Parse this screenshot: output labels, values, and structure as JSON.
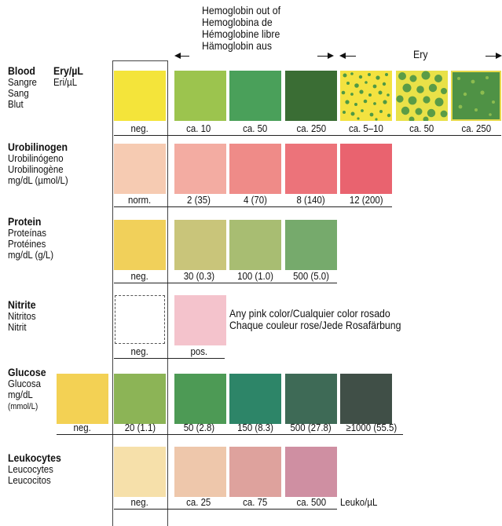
{
  "header": {
    "hemoglobin_lines": [
      "Hemoglobin out of",
      "Hemoglobina de",
      "Hémoglobine libre",
      "Hämoglobin aus"
    ],
    "ery_label": "Ery"
  },
  "blood": {
    "names": [
      "Blood",
      "Sangre",
      "Sang",
      "Blut"
    ],
    "units": [
      "Ery/µL",
      "Eri/µL"
    ],
    "labels": [
      "neg.",
      "ca. 10",
      "ca. 50",
      "ca. 250",
      "ca. 5–10",
      "ca. 50",
      "ca. 250"
    ],
    "colors": [
      "#f4e43a",
      "#9cc44e",
      "#4aa05a",
      "#3a6d34"
    ]
  },
  "urobilinogen": {
    "names": [
      "Urobilinogen",
      "Urobilinógeno",
      "Urobilinogène",
      "mg/dL (µmol/L)"
    ],
    "labels": [
      "norm.",
      "2 (35)",
      "4 (70)",
      "8 (140)",
      "12 (200)"
    ],
    "colors": [
      "#f6cbb2",
      "#f3aca2",
      "#ef8b88",
      "#ec737a",
      "#e9636f"
    ]
  },
  "protein": {
    "names": [
      "Protein",
      "Proteínas",
      "Protéines",
      "mg/dL (g/L)"
    ],
    "labels": [
      "neg.",
      "30 (0.3)",
      "100 (1.0)",
      "500 (5.0)"
    ],
    "colors": [
      "#f1d05a",
      "#c9c57a",
      "#a8bd72",
      "#76aa6c"
    ]
  },
  "nitrite": {
    "names": [
      "Nitrite",
      "Nitritos",
      "Nitrit"
    ],
    "labels": [
      "neg.",
      "pos."
    ],
    "colors": [
      "#ffffff",
      "#f4c3cc"
    ],
    "note_lines": [
      "Any pink color/Cualquier color rosado",
      "Chaque couleur rose/Jede Rosafärbung"
    ]
  },
  "glucose": {
    "names": [
      "Glucose",
      "Glucosa",
      "mg/dL",
      "(mmol/L)"
    ],
    "labels": [
      "neg.",
      "20 (1.1)",
      "50 (2.8)",
      "150 (8.3)",
      "500 (27.8)",
      "≥1000 (55.5)"
    ],
    "colors": [
      "#f3d154",
      "#8cb456",
      "#4d9a55",
      "#2d8568",
      "#3e6a56",
      "#404f47"
    ]
  },
  "leukocytes": {
    "names": [
      "Leukocytes",
      "Leucocytes",
      "Leucocitos"
    ],
    "labels": [
      "neg.",
      "ca. 25",
      "ca. 75",
      "ca. 500"
    ],
    "unit": "Leuko/µL",
    "colors": [
      "#f6e0aa",
      "#eec7ab",
      "#dea29d",
      "#cf8fa2"
    ]
  }
}
